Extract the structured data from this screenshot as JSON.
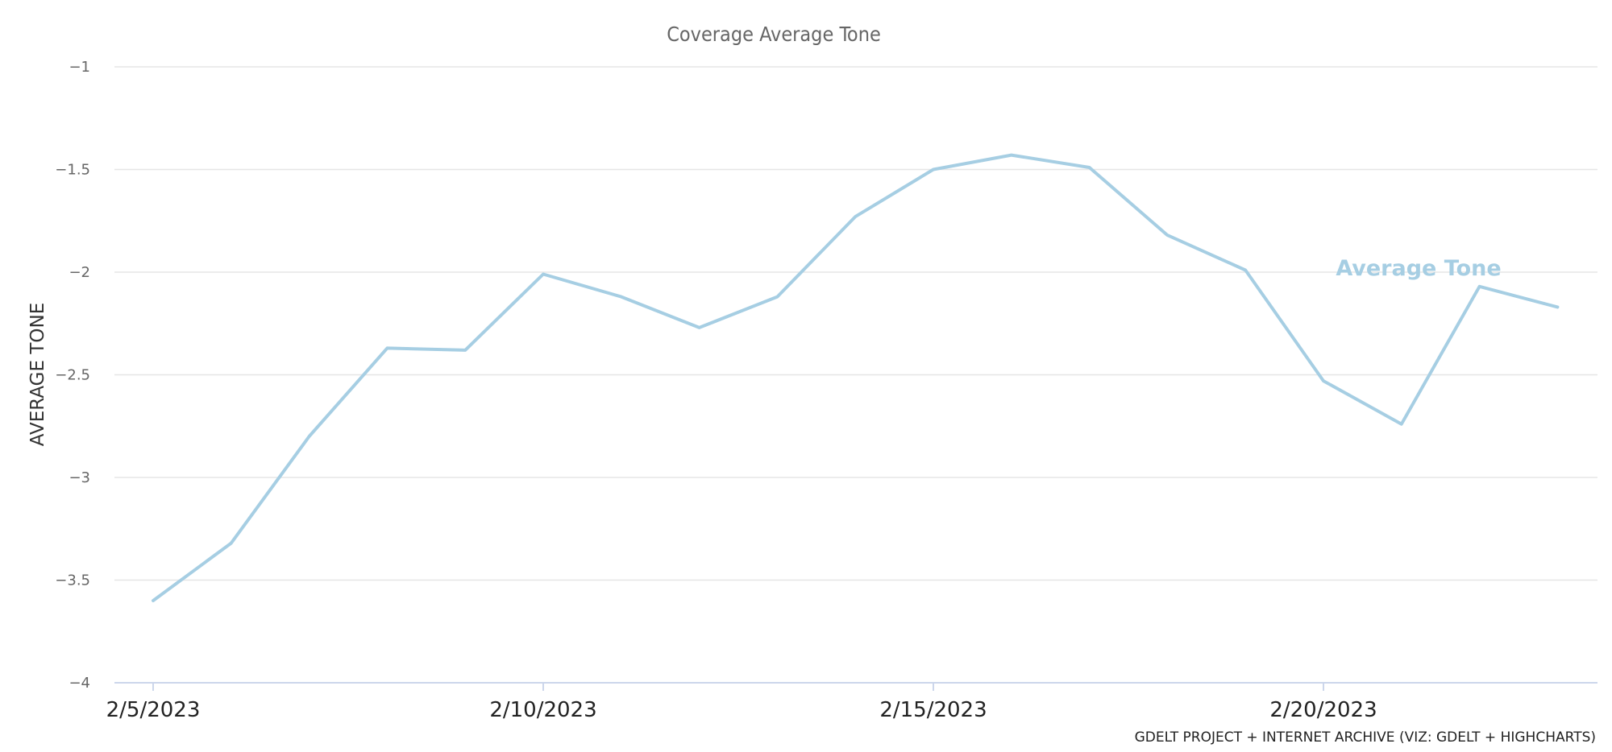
{
  "chart_data": {
    "type": "line",
    "title": "Coverage Average Tone",
    "xlabel": "",
    "ylabel": "AVERAGE TONE",
    "ylim": [
      -4,
      -1
    ],
    "y_ticks": [
      "-1",
      "-1.5",
      "-2",
      "-2.5",
      "-3",
      "-3.5",
      "-4"
    ],
    "x_tick_labels": [
      "2/5/2023",
      "2/10/2023",
      "2/15/2023",
      "2/20/2023"
    ],
    "x": [
      "2/5/2023",
      "2/6/2023",
      "2/7/2023",
      "2/8/2023",
      "2/9/2023",
      "2/10/2023",
      "2/11/2023",
      "2/12/2023",
      "2/13/2023",
      "2/14/2023",
      "2/15/2023",
      "2/16/2023",
      "2/17/2023",
      "2/18/2023",
      "2/19/2023",
      "2/20/2023",
      "2/21/2023",
      "2/22/2023",
      "2/23/2023"
    ],
    "series": [
      {
        "name": "Average Tone",
        "color": "#a6cee3",
        "values": [
          -3.6,
          -3.32,
          -2.8,
          -2.37,
          -2.38,
          -2.01,
          -2.12,
          -2.27,
          -2.12,
          -1.73,
          -1.5,
          -1.43,
          -1.49,
          -1.82,
          -1.99,
          -2.53,
          -2.74,
          -2.07,
          -2.17
        ]
      }
    ],
    "grid": true,
    "legend": "none",
    "credits": "GDELT PROJECT + INTERNET ARCHIVE (VIZ: GDELT + HIGHCHARTS)"
  }
}
